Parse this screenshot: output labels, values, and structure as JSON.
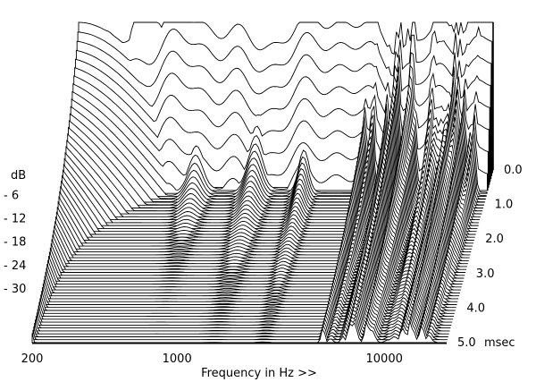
{
  "chart_data": {
    "type": "waterfall",
    "x_scale": "log",
    "x_range": [
      200,
      20000
    ],
    "x_ticks": [
      {
        "value": 200,
        "label": "200"
      },
      {
        "value": 1000,
        "label": "1000"
      },
      {
        "value": 10000,
        "label": "10000"
      }
    ],
    "xlabel": "Frequency in Hz >>",
    "ylabel": "dB",
    "y_range": [
      -36,
      0
    ],
    "y_ticks": [
      {
        "value": -6,
        "label": "- 6"
      },
      {
        "value": -12,
        "label": "- 12"
      },
      {
        "value": -18,
        "label": "- 18"
      },
      {
        "value": -24,
        "label": "- 24"
      },
      {
        "value": -30,
        "label": "- 30"
      }
    ],
    "z_label_unit": "msec",
    "z_range": [
      0,
      5
    ],
    "z_ticks": [
      {
        "value": 0,
        "label": "0.0"
      },
      {
        "value": 1,
        "label": "1.0"
      },
      {
        "value": 2,
        "label": "2.0"
      },
      {
        "value": 3,
        "label": "3.0"
      },
      {
        "value": 4,
        "label": "4.0"
      },
      {
        "value": 5,
        "label": "5.0"
      }
    ],
    "slice_count": 60,
    "line_color": "#000000",
    "fill_color": "#ffffff"
  }
}
